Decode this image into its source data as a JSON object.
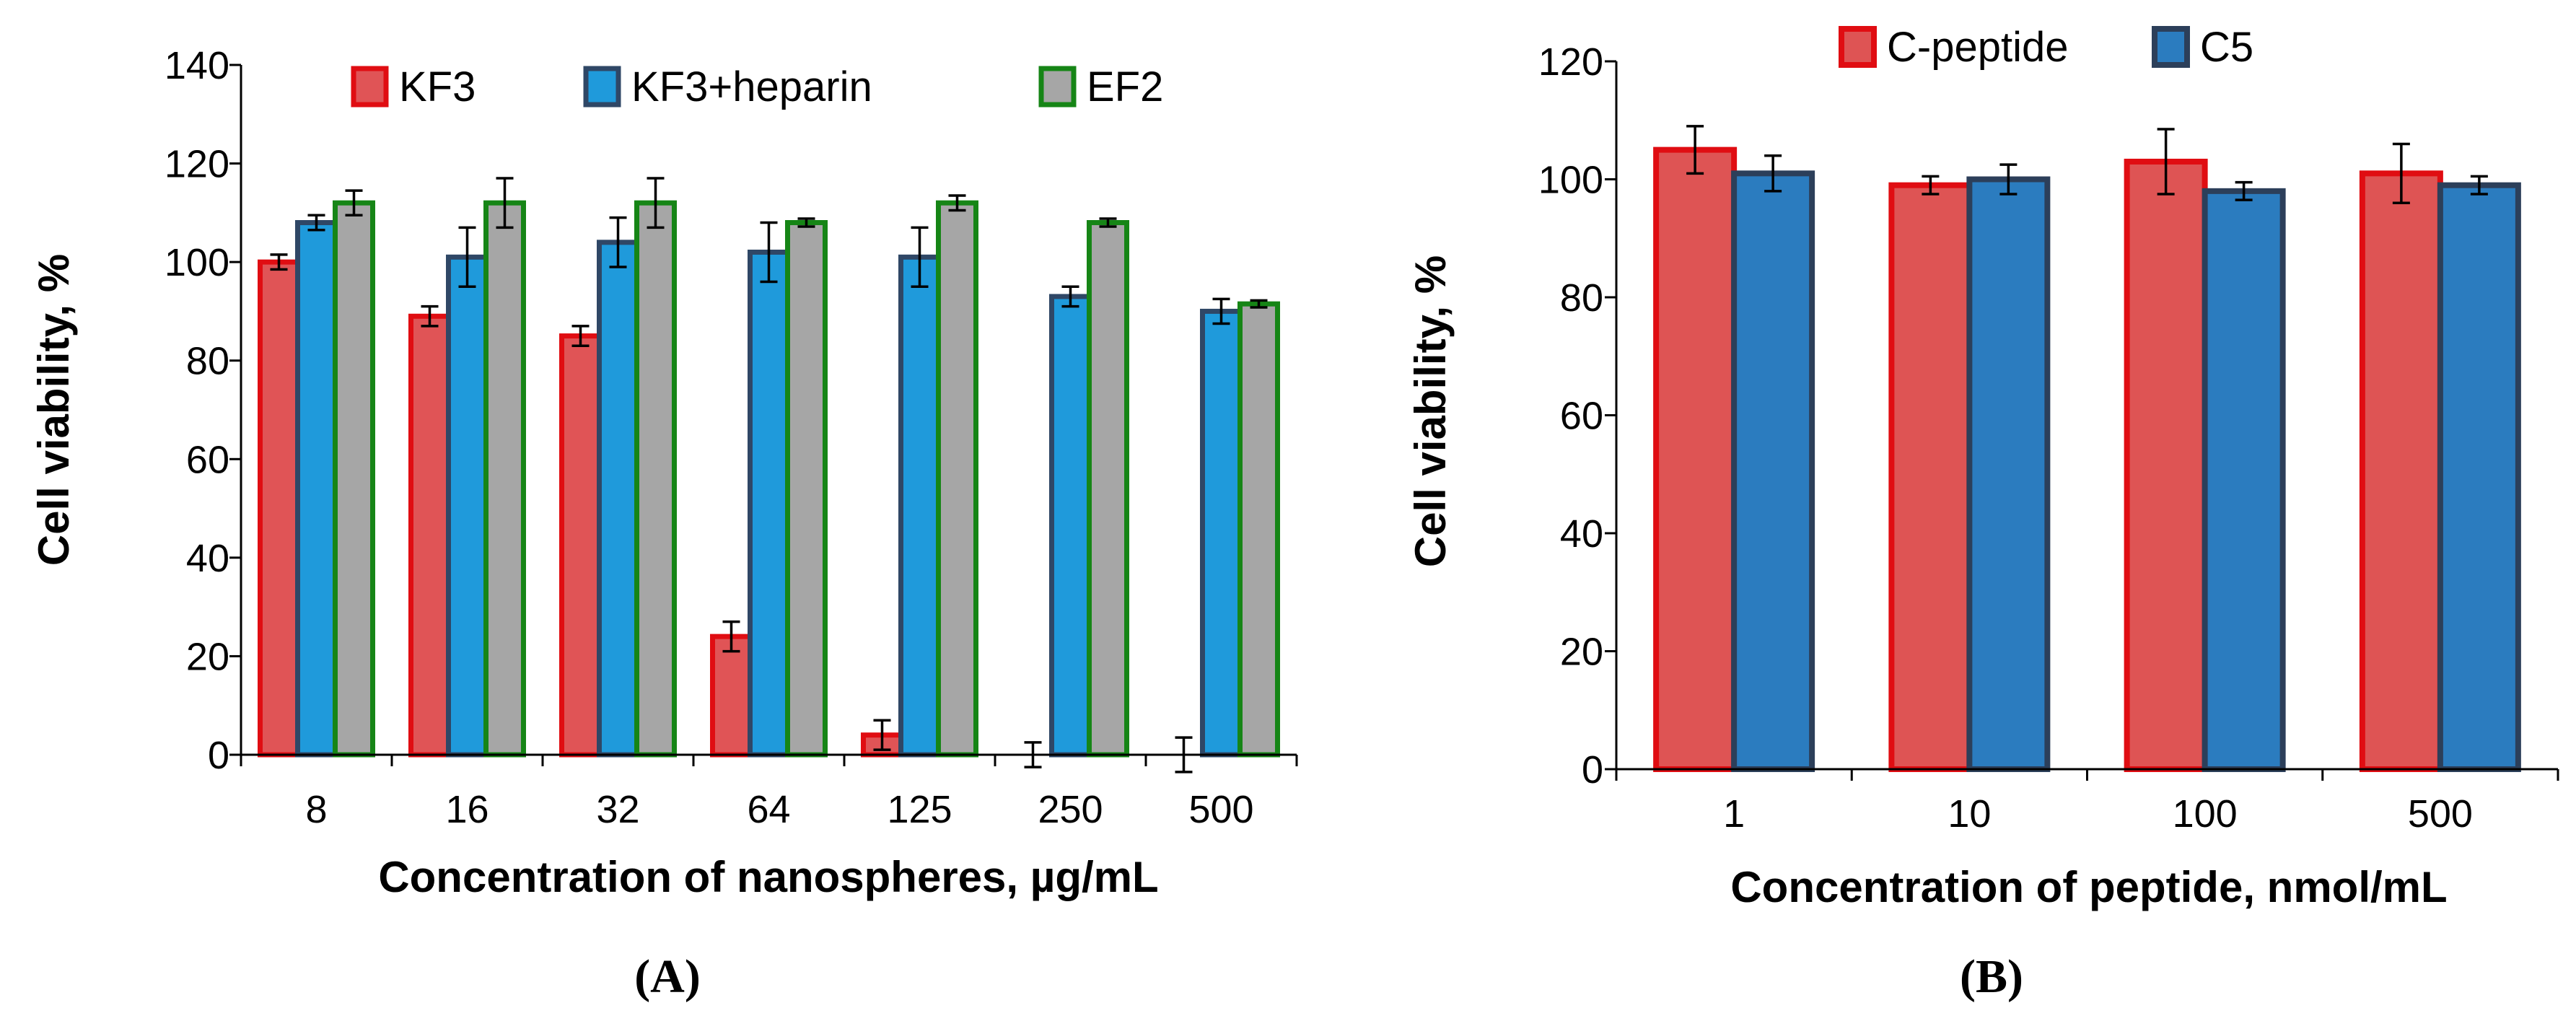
{
  "chart_data": [
    {
      "panel": "A",
      "type": "bar",
      "panel_label": "(A)",
      "ylabel": "Cell viability, %",
      "xlabel": "Concentration of nanospheres, µg/mL",
      "ylim": [
        0,
        140
      ],
      "yticks": [
        0,
        20,
        40,
        60,
        80,
        100,
        120,
        140
      ],
      "categories": [
        "8",
        "16",
        "32",
        "64",
        "125",
        "250",
        "500"
      ],
      "legend_position": "top",
      "series": [
        {
          "name": "KF3",
          "fill": "#e05456",
          "stroke": "#e00d12",
          "values": [
            100,
            89,
            85,
            24,
            4,
            0,
            0
          ],
          "errors": [
            1.5,
            2,
            2,
            3,
            3,
            2.5,
            3.5
          ]
        },
        {
          "name": "KF3+heparin",
          "fill": "#1f9adb",
          "stroke": "#2f4766",
          "values": [
            108,
            101,
            104,
            102,
            101,
            93,
            90
          ],
          "errors": [
            1.5,
            6,
            5,
            6,
            6,
            2,
            2.5
          ]
        },
        {
          "name": "EF2",
          "fill": "#a6a6a6",
          "stroke": "#168516",
          "values": [
            112,
            112,
            112,
            108,
            112,
            108,
            91.5
          ],
          "errors": [
            2.5,
            5,
            5,
            0.8,
            1.5,
            0.8,
            0.7
          ]
        }
      ]
    },
    {
      "panel": "B",
      "type": "bar",
      "panel_label": "(B)",
      "ylabel": "Cell viability, %",
      "xlabel": "Concentration of peptide, nmol/mL",
      "ylim": [
        0,
        120
      ],
      "yticks": [
        0,
        20,
        40,
        60,
        80,
        100,
        120
      ],
      "categories": [
        "1",
        "10",
        "100",
        "500"
      ],
      "legend_position": "top",
      "series": [
        {
          "name": "C-peptide",
          "fill": "#de5454",
          "stroke": "#e00d12",
          "values": [
            105,
            99,
            103,
            101
          ],
          "errors": [
            4,
            1.5,
            5.5,
            5
          ]
        },
        {
          "name": "C5",
          "fill": "#2b7cbf",
          "stroke": "#2c3f5a",
          "values": [
            101,
            100,
            98,
            99
          ],
          "errors": [
            3,
            2.5,
            1.5,
            1.5
          ]
        }
      ]
    }
  ]
}
